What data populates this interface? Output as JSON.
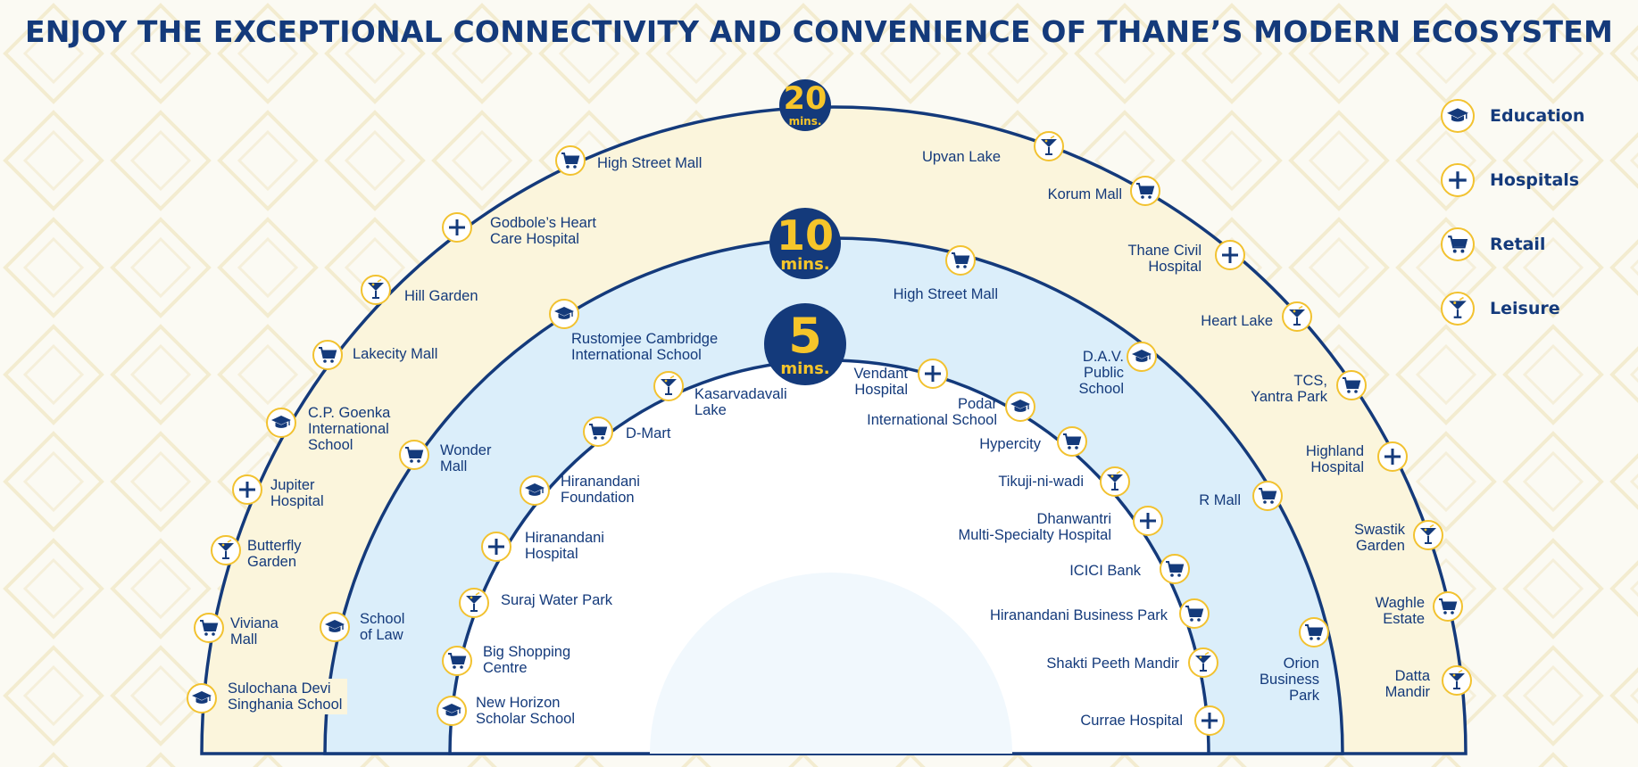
{
  "title": "ENJOY THE EXCEPTIONAL CONNECTIVITY AND CONVENIENCE OF THANE’S MODERN ECOSYSTEM",
  "colors": {
    "navy": "#143a7b",
    "yellow_accent": "#f2c230",
    "outer_band": "#fbf5dc",
    "middle_band": "#dbeefa",
    "center": "#ffffff",
    "background": "#fbfaf3"
  },
  "rings": [
    {
      "id": "ring-20",
      "number": "20",
      "unit": "mins."
    },
    {
      "id": "ring-10",
      "number": "10",
      "unit": "mins."
    },
    {
      "id": "ring-5",
      "number": "5",
      "unit": "mins."
    }
  ],
  "legend": [
    {
      "category": "education",
      "label": "Education",
      "icon": "graduation-cap-icon"
    },
    {
      "category": "hospital",
      "label": "Hospitals",
      "icon": "plus-icon"
    },
    {
      "category": "retail",
      "label": "Retail",
      "icon": "shopping-cart-icon"
    },
    {
      "category": "leisure",
      "label": "Leisure",
      "icon": "cocktail-glass-icon"
    }
  ],
  "places": {
    "ring_5": [
      {
        "name": "Kasarvadavali\nLake",
        "category": "leisure"
      },
      {
        "name": "D-Mart",
        "category": "retail"
      },
      {
        "name": "Hiranandani\nFoundation",
        "category": "education"
      },
      {
        "name": "Hiranandani\nHospital",
        "category": "hospital"
      },
      {
        "name": "Suraj Water Park",
        "category": "leisure"
      },
      {
        "name": "Big Shopping\nCentre",
        "category": "retail"
      },
      {
        "name": "New Horizon\nScholar School",
        "category": "education"
      },
      {
        "name": "Vendant\nHospital",
        "category": "hospital"
      },
      {
        "name": "Podar\nInternational School",
        "category": "education"
      },
      {
        "name": "Hypercity",
        "category": "retail"
      },
      {
        "name": "Tikuji-ni-wadi",
        "category": "leisure"
      },
      {
        "name": "Dhanwantri\nMulti-Specialty Hospital",
        "category": "hospital"
      },
      {
        "name": "ICICI Bank",
        "category": "retail"
      },
      {
        "name": "Hiranandani Business Park",
        "category": "retail"
      },
      {
        "name": "Shakti Peeth Mandir",
        "category": "leisure"
      },
      {
        "name": "Currae Hospital",
        "category": "hospital"
      }
    ],
    "ring_10": [
      {
        "name": "Rustomjee Cambridge\nInternational School",
        "category": "education"
      },
      {
        "name": "Wonder\nMall",
        "category": "retail"
      },
      {
        "name": "School\nof Law",
        "category": "education"
      },
      {
        "name": "High Street Mall",
        "category": "retail"
      },
      {
        "name": "D.A.V.\nPublic\nSchool",
        "category": "education"
      },
      {
        "name": "R Mall",
        "category": "retail"
      },
      {
        "name": "Orion\nBusiness\nPark",
        "category": "retail"
      }
    ],
    "ring_20": [
      {
        "name": "High Street Mall",
        "category": "retail"
      },
      {
        "name": "Godbole’s Heart\nCare Hospital",
        "category": "hospital"
      },
      {
        "name": "Hill Garden",
        "category": "leisure"
      },
      {
        "name": "Lakecity Mall",
        "category": "retail"
      },
      {
        "name": "C.P. Goenka\nInternational\nSchool",
        "category": "education"
      },
      {
        "name": "Jupiter\nHospital",
        "category": "hospital"
      },
      {
        "name": "Butterfly\nGarden",
        "category": "leisure"
      },
      {
        "name": "Viviana\nMall",
        "category": "retail"
      },
      {
        "name": "Sulochana Devi\nSinghania School",
        "category": "education"
      },
      {
        "name": "Upvan Lake",
        "category": "leisure"
      },
      {
        "name": "Korum Mall",
        "category": "retail"
      },
      {
        "name": "Thane Civil\nHospital",
        "category": "hospital"
      },
      {
        "name": "Heart Lake",
        "category": "leisure"
      },
      {
        "name": "TCS,\nYantra Park",
        "category": "retail"
      },
      {
        "name": "Highland\nHospital",
        "category": "hospital"
      },
      {
        "name": "Swastik\nGarden",
        "category": "leisure"
      },
      {
        "name": "Waghle\nEstate",
        "category": "retail"
      },
      {
        "name": "Datta\nMandir",
        "category": "leisure"
      }
    ]
  }
}
